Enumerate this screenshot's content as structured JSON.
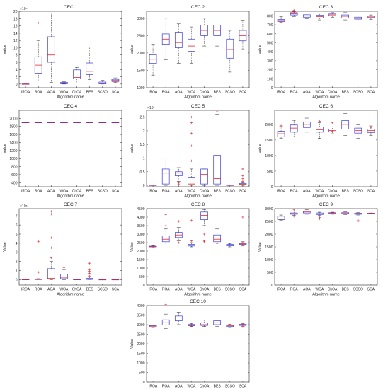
{
  "figure": {
    "algorithms": [
      "IROA",
      "ROA",
      "AOA",
      "WOA",
      "ChOA",
      "BES",
      "SCSO",
      "SCA"
    ],
    "xlabel": "Algorithm name",
    "ylabel": "Value",
    "colors": {
      "box": "#3b3bdb",
      "median": "#e8242c",
      "outlier": "#e8242c",
      "whisker": "#222222",
      "axes": "#262626"
    }
  },
  "chart_data": [
    {
      "type": "box",
      "title": "CEC 1",
      "exponent": "×10⁵",
      "ylim": [
        -1,
        20
      ],
      "yticks": [
        0,
        2,
        4,
        6,
        8,
        10,
        12,
        14,
        16,
        18,
        20
      ],
      "boxes": [
        {
          "lw": 0,
          "q1": 0,
          "med": 0,
          "q3": 0.05,
          "uw": 0.05,
          "out": []
        },
        {
          "lw": 0.8,
          "q1": 3,
          "med": 5.2,
          "q3": 7.5,
          "uw": 12,
          "out": [
            16.8
          ]
        },
        {
          "lw": 0.5,
          "q1": 6,
          "med": 8,
          "q3": 13,
          "uw": 19.5,
          "out": []
        },
        {
          "lw": 0,
          "q1": 0.1,
          "med": 0.25,
          "q3": 0.45,
          "uw": 0.7,
          "out": [
            0.4
          ]
        },
        {
          "lw": 0.3,
          "q1": 1.4,
          "med": 1.8,
          "q3": 3.9,
          "uw": 4.6,
          "out": []
        },
        {
          "lw": 1.2,
          "q1": 2.6,
          "med": 3.5,
          "q3": 5.8,
          "uw": 10.2,
          "out": []
        },
        {
          "lw": 0,
          "q1": 0.05,
          "med": 0.2,
          "q3": 0.55,
          "uw": 1,
          "out": []
        },
        {
          "lw": 0.4,
          "q1": 0.7,
          "med": 1,
          "q3": 1.3,
          "uw": 1.7,
          "out": []
        }
      ]
    },
    {
      "type": "box",
      "title": "CEC 2",
      "exponent": "",
      "ylim": [
        1000,
        3200
      ],
      "yticks": [
        1000,
        1500,
        2000,
        2500,
        3000
      ],
      "boxes": [
        {
          "lw": 1350,
          "q1": 1700,
          "med": 1820,
          "q3": 1950,
          "uw": 2250,
          "out": []
        },
        {
          "lw": 1800,
          "q1": 2250,
          "med": 2400,
          "q3": 2550,
          "uw": 3000,
          "out": []
        },
        {
          "lw": 1700,
          "q1": 2150,
          "med": 2300,
          "q3": 2600,
          "uw": 2850,
          "out": []
        },
        {
          "lw": 1700,
          "q1": 2050,
          "med": 2200,
          "q3": 2400,
          "uw": 2750,
          "out": []
        },
        {
          "lw": 2200,
          "q1": 2500,
          "med": 2650,
          "q3": 2800,
          "uw": 3000,
          "out": []
        },
        {
          "lw": 2200,
          "q1": 2500,
          "med": 2650,
          "q3": 2800,
          "uw": 3150,
          "out": []
        },
        {
          "lw": 1450,
          "q1": 1850,
          "med": 2100,
          "q3": 2400,
          "uw": 2650,
          "out": []
        },
        {
          "lw": 2100,
          "q1": 2350,
          "med": 2500,
          "q3": 2650,
          "uw": 2950,
          "out": []
        }
      ]
    },
    {
      "type": "box",
      "title": "CEC 3",
      "exponent": "",
      "ylim": [
        0,
        850
      ],
      "yticks": [
        0,
        100,
        200,
        300,
        400,
        500,
        600,
        700,
        800
      ],
      "boxes": [
        {
          "lw": 725,
          "q1": 735,
          "med": 748,
          "q3": 760,
          "uw": 790,
          "out": []
        },
        {
          "lw": 790,
          "q1": 810,
          "med": 823,
          "q3": 835,
          "uw": 845,
          "out": [
            862
          ]
        },
        {
          "lw": 768,
          "q1": 785,
          "med": 798,
          "q3": 812,
          "uw": 832,
          "out": []
        },
        {
          "lw": 755,
          "q1": 775,
          "med": 790,
          "q3": 808,
          "uw": 830,
          "out": []
        },
        {
          "lw": 785,
          "q1": 800,
          "med": 810,
          "q3": 820,
          "uw": 835,
          "out": []
        },
        {
          "lw": 755,
          "q1": 775,
          "med": 795,
          "q3": 810,
          "uw": 835,
          "out": []
        },
        {
          "lw": 745,
          "q1": 763,
          "med": 773,
          "q3": 785,
          "uw": 800,
          "out": []
        },
        {
          "lw": 760,
          "q1": 775,
          "med": 785,
          "q3": 795,
          "uw": 810,
          "out": []
        }
      ]
    },
    {
      "type": "box",
      "title": "CEC 4",
      "exponent": "",
      "ylim": [
        300,
        2200
      ],
      "yticks": [
        400,
        600,
        800,
        1000,
        1200,
        1400,
        1600,
        1800,
        2000
      ],
      "boxes": [
        {
          "lw": 1900,
          "q1": 1900,
          "med": 1900,
          "q3": 1900,
          "uw": 1900,
          "out": []
        },
        {
          "lw": 1900,
          "q1": 1900,
          "med": 1900,
          "q3": 1900,
          "uw": 1900,
          "out": []
        },
        {
          "lw": 1900,
          "q1": 1900,
          "med": 1900,
          "q3": 1900,
          "uw": 1900,
          "out": []
        },
        {
          "lw": 1900,
          "q1": 1900,
          "med": 1900,
          "q3": 1900,
          "uw": 1900,
          "out": [
            1900
          ]
        },
        {
          "lw": 1900,
          "q1": 1900,
          "med": 1900,
          "q3": 1900,
          "uw": 1900,
          "out": []
        },
        {
          "lw": 1900,
          "q1": 1900,
          "med": 1900,
          "q3": 1900,
          "uw": 1900,
          "out": []
        },
        {
          "lw": 1900,
          "q1": 1900,
          "med": 1900,
          "q3": 1900,
          "uw": 1900,
          "out": []
        },
        {
          "lw": 1900,
          "q1": 1900,
          "med": 1900,
          "q3": 1900,
          "uw": 1900,
          "out": [
            1900
          ]
        }
      ]
    },
    {
      "type": "box",
      "title": "CEC 5",
      "exponent": "×10⁶",
      "ylim": [
        -0.05,
        2.75
      ],
      "yticks": [
        0,
        0.5,
        1,
        1.5,
        2,
        2.5
      ],
      "boxes": [
        {
          "lw": 0,
          "q1": 0,
          "med": 0.005,
          "q3": 0.01,
          "uw": 0.02,
          "out": []
        },
        {
          "lw": 0,
          "q1": 0.05,
          "med": 0.45,
          "q3": 0.6,
          "uw": 1,
          "out": []
        },
        {
          "lw": 0.15,
          "q1": 0.35,
          "med": 0.45,
          "q3": 0.5,
          "uw": 0.65,
          "out": [
            0.05,
            0.1
          ]
        },
        {
          "lw": 0,
          "q1": 0.02,
          "med": 0.05,
          "q3": 0.3,
          "uw": 0.6,
          "out": [
            0.9,
            1.45,
            1.9,
            2.3,
            2.5
          ]
        },
        {
          "lw": 0,
          "q1": 0.05,
          "med": 0.4,
          "q3": 0.6,
          "uw": 0.6,
          "out": []
        },
        {
          "lw": 0,
          "q1": 0.05,
          "med": 0.25,
          "q3": 1.1,
          "uw": 2.6,
          "out": [
            2.7
          ]
        },
        {
          "lw": 0,
          "q1": 0,
          "med": 0.005,
          "q3": 0.01,
          "uw": 0.02,
          "out": []
        },
        {
          "lw": 0,
          "q1": 0.02,
          "med": 0.04,
          "q3": 0.07,
          "uw": 0.1,
          "out": [
            0.15,
            0.25,
            0.35,
            0.6
          ]
        }
      ]
    },
    {
      "type": "box",
      "title": "CEC 6",
      "exponent": "",
      "ylim": [
        0,
        2450
      ],
      "yticks": [
        0,
        500,
        1000,
        1500,
        2000
      ],
      "boxes": [
        {
          "lw": 1550,
          "q1": 1600,
          "med": 1700,
          "q3": 1780,
          "uw": 1950,
          "out": [
            1950
          ]
        },
        {
          "lw": 1600,
          "q1": 1750,
          "med": 1880,
          "q3": 1980,
          "uw": 2130,
          "out": []
        },
        {
          "lw": 1750,
          "q1": 1900,
          "med": 2000,
          "q3": 2080,
          "uw": 2200,
          "out": []
        },
        {
          "lw": 1550,
          "q1": 1750,
          "med": 1830,
          "q3": 1920,
          "uw": 2050,
          "out": [
            2100
          ]
        },
        {
          "lw": 1700,
          "q1": 1760,
          "med": 1800,
          "q3": 1850,
          "uw": 1920,
          "out": [
            2050,
            1780
          ]
        },
        {
          "lw": 1650,
          "q1": 1850,
          "med": 2000,
          "q3": 2120,
          "uw": 2350,
          "out": []
        },
        {
          "lw": 1550,
          "q1": 1720,
          "med": 1800,
          "q3": 1880,
          "uw": 1980,
          "out": []
        },
        {
          "lw": 1650,
          "q1": 1740,
          "med": 1800,
          "q3": 1850,
          "uw": 1950,
          "out": [
            1900
          ]
        }
      ]
    },
    {
      "type": "box",
      "title": "CEC 7",
      "exponent": "×10⁵",
      "ylim": [
        -0.6,
        7.8
      ],
      "yticks": [
        0,
        1,
        2,
        3,
        4,
        5,
        6,
        7
      ],
      "boxes": [
        {
          "lw": 0,
          "q1": 0,
          "med": 0,
          "q3": 0.02,
          "uw": 0.05,
          "out": []
        },
        {
          "lw": 0,
          "q1": 0,
          "med": 0.02,
          "q3": 0.05,
          "uw": 0.1,
          "out": [
            0.8,
            4.2
          ]
        },
        {
          "lw": 0,
          "q1": 0.05,
          "med": 0.15,
          "q3": 1.2,
          "uw": 2,
          "out": [
            2.4,
            3.5,
            4.6,
            7.2,
            7.5
          ]
        },
        {
          "lw": 0,
          "q1": 0.1,
          "med": 0.25,
          "q3": 0.6,
          "uw": 1.1,
          "out": [
            1.3,
            1.6,
            4.8
          ]
        },
        {
          "lw": 0,
          "q1": 0,
          "med": 0.01,
          "q3": 0.02,
          "uw": 0.04,
          "out": []
        },
        {
          "lw": 0,
          "q1": 0.02,
          "med": 0.05,
          "q3": 0.15,
          "uw": 0.3,
          "out": [
            0.4,
            0.7,
            0.9,
            1.1,
            1.8
          ]
        },
        {
          "lw": 0,
          "q1": 0,
          "med": 0,
          "q3": 0.01,
          "uw": 0.02,
          "out": []
        },
        {
          "lw": 0,
          "q1": 0,
          "med": 0,
          "q3": 0.01,
          "uw": 0.02,
          "out": []
        }
      ]
    },
    {
      "type": "box",
      "title": "CEC 8",
      "exponent": "",
      "ylim": [
        0,
        4500
      ],
      "yticks": [
        0,
        500,
        1000,
        1500,
        2000,
        2500,
        3000,
        3500,
        4000,
        4500
      ],
      "boxes": [
        {
          "lw": 2200,
          "q1": 2250,
          "med": 2270,
          "q3": 2290,
          "uw": 2320,
          "out": []
        },
        {
          "lw": 2350,
          "q1": 2550,
          "med": 2700,
          "q3": 2900,
          "uw": 3300,
          "out": [
            3500,
            4150
          ]
        },
        {
          "lw": 2600,
          "q1": 2800,
          "med": 2950,
          "q3": 3100,
          "uw": 3400,
          "out": [
            3750,
            2500
          ]
        },
        {
          "lw": 2250,
          "q1": 2300,
          "med": 2350,
          "q3": 2400,
          "uw": 2500,
          "out": [
            2600,
            3800
          ]
        },
        {
          "lw": 3500,
          "q1": 3850,
          "med": 4100,
          "q3": 4300,
          "uw": 4450,
          "out": [
            3000,
            2600,
            2550
          ]
        },
        {
          "lw": 2350,
          "q1": 2550,
          "med": 2700,
          "q3": 2950,
          "uw": 3300,
          "out": [
            3650,
            2450
          ]
        },
        {
          "lw": 2250,
          "q1": 2310,
          "med": 2350,
          "q3": 2390,
          "uw": 2450,
          "out": []
        },
        {
          "lw": 2300,
          "q1": 2380,
          "med": 2420,
          "q3": 2460,
          "uw": 2550,
          "out": [
            4000,
            2500
          ]
        }
      ]
    },
    {
      "type": "box",
      "title": "CEC 9",
      "exponent": "",
      "ylim": [
        0,
        3000
      ],
      "yticks": [
        0,
        500,
        1000,
        1500,
        2000,
        2500,
        3000
      ],
      "boxes": [
        {
          "lw": 2550,
          "q1": 2570,
          "med": 2590,
          "q3": 2700,
          "uw": 2750,
          "out": []
        },
        {
          "lw": 2740,
          "q1": 2780,
          "med": 2800,
          "q3": 2830,
          "uw": 2900,
          "out": [
            2700,
            2950
          ]
        },
        {
          "lw": 2780,
          "q1": 2830,
          "med": 2870,
          "q3": 2900,
          "uw": 2960,
          "out": []
        },
        {
          "lw": 2740,
          "q1": 2770,
          "med": 2790,
          "q3": 2830,
          "uw": 2860,
          "out": [
            2650,
            2600
          ]
        },
        {
          "lw": 2780,
          "q1": 2800,
          "med": 2820,
          "q3": 2840,
          "uw": 2860,
          "out": []
        },
        {
          "lw": 2760,
          "q1": 2790,
          "med": 2810,
          "q3": 2840,
          "uw": 2880,
          "out": []
        },
        {
          "lw": 2750,
          "q1": 2780,
          "med": 2800,
          "q3": 2820,
          "uw": 2840,
          "out": [
            2550,
            2500
          ]
        },
        {
          "lw": 2790,
          "q1": 2800,
          "med": 2810,
          "q3": 2820,
          "uw": 2830,
          "out": []
        }
      ]
    },
    {
      "type": "box",
      "title": "CEC 10",
      "exponent": "",
      "ylim": [
        0,
        4000
      ],
      "yticks": [
        0,
        500,
        1000,
        1500,
        2000,
        2500,
        3000,
        3500,
        4000
      ],
      "boxes": [
        {
          "lw": 2850,
          "q1": 2880,
          "med": 2920,
          "q3": 2950,
          "uw": 2980,
          "out": []
        },
        {
          "lw": 2800,
          "q1": 2980,
          "med": 3100,
          "q3": 3250,
          "uw": 3550,
          "out": [
            4050
          ]
        },
        {
          "lw": 3000,
          "q1": 3200,
          "med": 3350,
          "q3": 3450,
          "uw": 3650,
          "out": []
        },
        {
          "lw": 2900,
          "q1": 2940,
          "med": 2970,
          "q3": 3010,
          "uw": 3060,
          "out": [
            2930
          ]
        },
        {
          "lw": 2900,
          "q1": 2960,
          "med": 3000,
          "q3": 3100,
          "uw": 3250,
          "out": []
        },
        {
          "lw": 2900,
          "q1": 3000,
          "med": 3100,
          "q3": 3200,
          "uw": 3500,
          "out": []
        },
        {
          "lw": 2850,
          "q1": 2900,
          "med": 2940,
          "q3": 2980,
          "uw": 3020,
          "out": []
        },
        {
          "lw": 2900,
          "q1": 2960,
          "med": 2990,
          "q3": 3020,
          "uw": 3060,
          "out": [
            2900,
            3000
          ]
        }
      ]
    }
  ]
}
